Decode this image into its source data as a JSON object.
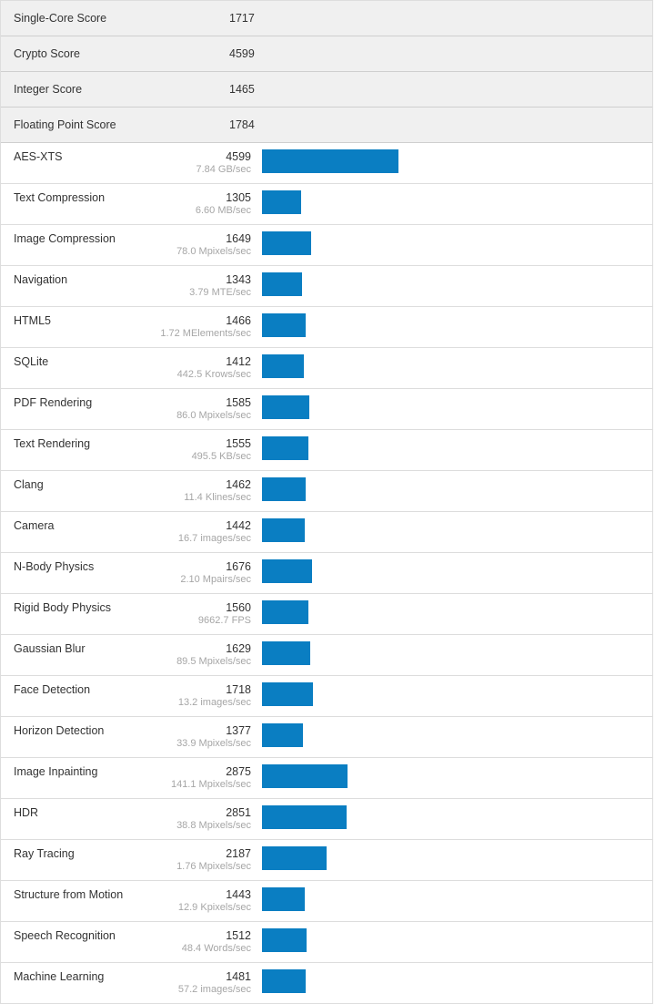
{
  "summary": [
    {
      "label": "Single-Core Score",
      "value": "1717"
    },
    {
      "label": "Crypto Score",
      "value": "4599"
    },
    {
      "label": "Integer Score",
      "value": "1465"
    },
    {
      "label": "Floating Point Score",
      "value": "1784"
    }
  ],
  "bar_color": "#0a7ec2",
  "benchmarks": [
    {
      "name": "AES-XTS",
      "score": "4599",
      "rate": "7.84 GB/sec",
      "bar_value": 4599
    },
    {
      "name": "Text Compression",
      "score": "1305",
      "rate": "6.60 MB/sec",
      "bar_value": 1305
    },
    {
      "name": "Image Compression",
      "score": "1649",
      "rate": "78.0 Mpixels/sec",
      "bar_value": 1649
    },
    {
      "name": "Navigation",
      "score": "1343",
      "rate": "3.79 MTE/sec",
      "bar_value": 1343
    },
    {
      "name": "HTML5",
      "score": "1466",
      "rate": "1.72 MElements/sec",
      "bar_value": 1466
    },
    {
      "name": "SQLite",
      "score": "1412",
      "rate": "442.5 Krows/sec",
      "bar_value": 1412
    },
    {
      "name": "PDF Rendering",
      "score": "1585",
      "rate": "86.0 Mpixels/sec",
      "bar_value": 1585
    },
    {
      "name": "Text Rendering",
      "score": "1555",
      "rate": "495.5 KB/sec",
      "bar_value": 1555
    },
    {
      "name": "Clang",
      "score": "1462",
      "rate": "11.4 Klines/sec",
      "bar_value": 1462
    },
    {
      "name": "Camera",
      "score": "1442",
      "rate": "16.7 images/sec",
      "bar_value": 1442
    },
    {
      "name": "N-Body Physics",
      "score": "1676",
      "rate": "2.10 Mpairs/sec",
      "bar_value": 1676
    },
    {
      "name": "Rigid Body Physics",
      "score": "1560",
      "rate": "9662.7 FPS",
      "bar_value": 1560
    },
    {
      "name": "Gaussian Blur",
      "score": "1629",
      "rate": "89.5 Mpixels/sec",
      "bar_value": 1629
    },
    {
      "name": "Face Detection",
      "score": "1718",
      "rate": "13.2 images/sec",
      "bar_value": 1718
    },
    {
      "name": "Horizon Detection",
      "score": "1377",
      "rate": "33.9 Mpixels/sec",
      "bar_value": 1377
    },
    {
      "name": "Image Inpainting",
      "score": "2875",
      "rate": "141.1 Mpixels/sec",
      "bar_value": 2875
    },
    {
      "name": "HDR",
      "score": "2851",
      "rate": "38.8 Mpixels/sec",
      "bar_value": 2851
    },
    {
      "name": "Ray Tracing",
      "score": "2187",
      "rate": "1.76 Mpixels/sec",
      "bar_value": 2187
    },
    {
      "name": "Structure from Motion",
      "score": "1443",
      "rate": "12.9 Kpixels/sec",
      "bar_value": 1443
    },
    {
      "name": "Speech Recognition",
      "score": "1512",
      "rate": "48.4 Words/sec",
      "bar_value": 1512
    },
    {
      "name": "Machine Learning",
      "score": "1481",
      "rate": "57.2 images/sec",
      "bar_value": 1481
    }
  ]
}
